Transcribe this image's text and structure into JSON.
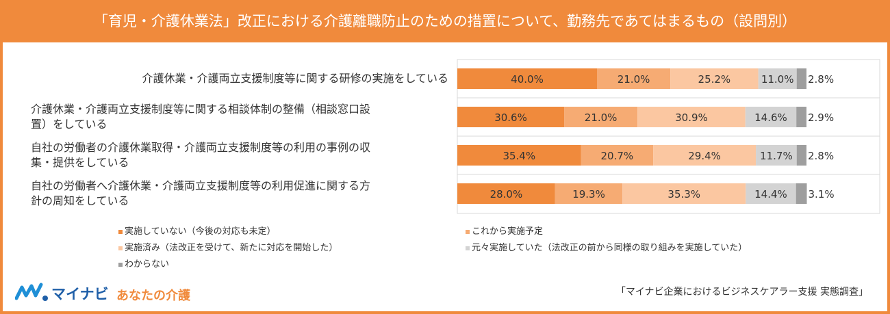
{
  "title": "「育児・介護休業法」改正における介護離職防止のための措置について、勤務先であてはまるもの（設問別）",
  "colors": {
    "header": "#f08a3c",
    "series": [
      "#f08a3c",
      "#f6ab73",
      "#fbc7a1",
      "#d3d3d3",
      "#9e9e9e"
    ]
  },
  "chart_data": {
    "type": "bar",
    "orientation": "horizontal",
    "stacked": true,
    "percent_stacked": true,
    "categories": [
      "介護休業・介護両立支援制度等に関する研修の実施をしている",
      "介護休業・介護両立支援制度等に関する相談体制の整備（相談窓口設置）をしている",
      "自社の労働者の介護休業取得・介護両立支援制度等の利用の事例の収集・提供をしている",
      "自社の労働者へ介護休業・介護両立支援制度等の利用促進に関する方針の周知をしている"
    ],
    "category_lines": [
      [
        "介護休業・介護両立支援制度等に関する研修の実施をしている"
      ],
      [
        "介護休業・介護両立支援制度等に関する相談体制の整備（相談窓口設",
        "置）をしている"
      ],
      [
        "自社の労働者の介護休業取得・介護両立支援制度等の利用の事例の収",
        "集・提供をしている"
      ],
      [
        "自社の労働者へ介護休業・介護両立支援制度等の利用促進に関する方",
        "針の周知をしている"
      ]
    ],
    "series": [
      {
        "name": "実施していない（今後の対応も未定）",
        "values": [
          40.0,
          30.6,
          35.4,
          28.0
        ],
        "labels": [
          "40.0%",
          "30.6%",
          "35.4%",
          "28.0%"
        ]
      },
      {
        "name": "これから実施予定",
        "values": [
          21.0,
          21.0,
          20.7,
          19.3
        ],
        "labels": [
          "21.0%",
          "21.0%",
          "20.7%",
          "19.3%"
        ]
      },
      {
        "name": "実施済み（法改正を受けて、新たに対応を開始した）",
        "values": [
          25.2,
          30.9,
          29.4,
          35.3
        ],
        "labels": [
          "25.2%",
          "30.9%",
          "29.4%",
          "35.3%"
        ]
      },
      {
        "name": "元々実施していた（法改正の前から同様の取り組みを実施していた）",
        "values": [
          11.0,
          14.6,
          11.7,
          14.4
        ],
        "labels": [
          "11.0%",
          "14.6%",
          "11.7%",
          "14.4%"
        ]
      },
      {
        "name": "わからない",
        "values": [
          2.8,
          2.9,
          2.8,
          3.1
        ],
        "labels": [
          "2.8%",
          "2.9%",
          "2.8%",
          "3.1%"
        ]
      }
    ],
    "xlim": [
      0,
      100
    ],
    "grid": false,
    "legend_position": "bottom"
  },
  "footer": {
    "logo_text": "マイナビ",
    "logo_sub": "あなたの介護",
    "source": "「マイナビ企業におけるビジネスケアラー支援 実態調査」"
  }
}
